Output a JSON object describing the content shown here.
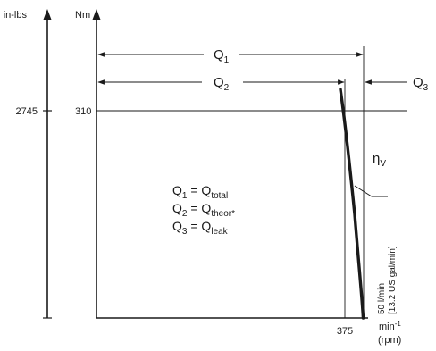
{
  "axes": {
    "left_unit": "in-lbs",
    "right_unit": "Nm",
    "left_tick": "2745",
    "right_tick": "310",
    "x_unit": "min",
    "x_unit_exp": "-1",
    "x_unit_alt": "(rpm)",
    "x_tick": "375"
  },
  "flows": {
    "q1": {
      "base": "Q",
      "sub": "1"
    },
    "q2": {
      "base": "Q",
      "sub": "2"
    },
    "q3": {
      "base": "Q",
      "sub": "3"
    }
  },
  "eta": {
    "base": "η",
    "sub": "V"
  },
  "legend": [
    {
      "lhs_base": "Q",
      "lhs_sub": "1",
      "rhs_base": "Q",
      "rhs_sub": "total"
    },
    {
      "lhs_base": "Q",
      "lhs_sub": "2",
      "rhs_base": "Q",
      "rhs_sub": "theor*"
    },
    {
      "lhs_base": "Q",
      "lhs_sub": "3",
      "rhs_base": "Q",
      "rhs_sub": "leak"
    }
  ],
  "leak_note": {
    "line1": "50 l/min",
    "line2": "[13.2 US gal/min]"
  }
}
